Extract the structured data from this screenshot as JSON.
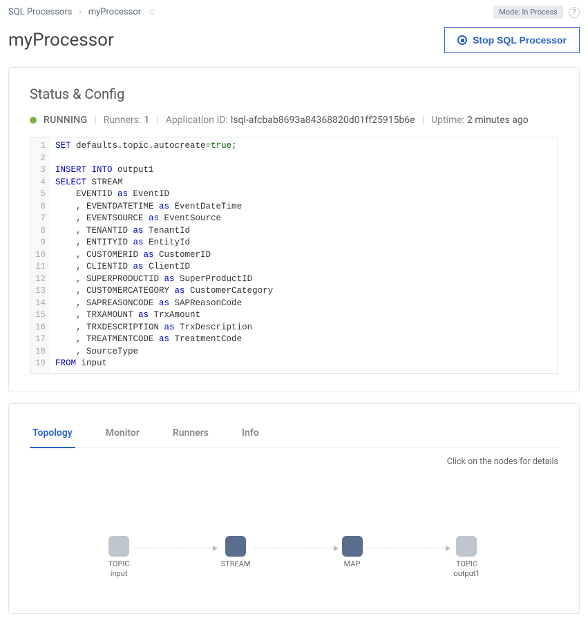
{
  "breadcrumb": {
    "root": "SQL Processors",
    "current": "myProcessor"
  },
  "mode": "Mode: In Process",
  "title": "myProcessor",
  "stop_button": "Stop SQL Processor",
  "status_panel": {
    "heading": "Status & Config",
    "status": "RUNNING",
    "runners_label": "Runners:",
    "runners": "1",
    "appid_label": "Application ID:",
    "appid": "lsql-afcbab8693a84368820d01ff25915b6e",
    "uptime_label": "Uptime:",
    "uptime": "2 minutes ago"
  },
  "code": {
    "lines": [
      [
        [
          "kw",
          "SET"
        ],
        [
          "",
          " defaults.topic.autocreate="
        ],
        [
          "lit",
          "true"
        ],
        [
          "",
          ";"
        ]
      ],
      [
        [
          "",
          ""
        ]
      ],
      [
        [
          "kw",
          "INSERT INTO"
        ],
        [
          "",
          " output1"
        ]
      ],
      [
        [
          "kw",
          "SELECT"
        ],
        [
          "",
          " STREAM"
        ]
      ],
      [
        [
          "",
          "    EVENTID "
        ],
        [
          "kw",
          "as"
        ],
        [
          "",
          " EventID"
        ]
      ],
      [
        [
          "",
          "    , EVENTDATETIME "
        ],
        [
          "kw",
          "as"
        ],
        [
          "",
          " EventDateTime"
        ]
      ],
      [
        [
          "",
          "    , EVENTSOURCE "
        ],
        [
          "kw",
          "as"
        ],
        [
          "",
          " EventSource"
        ]
      ],
      [
        [
          "",
          "    , TENANTID "
        ],
        [
          "kw",
          "as"
        ],
        [
          "",
          " TenantId"
        ]
      ],
      [
        [
          "",
          "    , ENTITYID "
        ],
        [
          "kw",
          "as"
        ],
        [
          "",
          " EntityId"
        ]
      ],
      [
        [
          "",
          "    , CUSTOMERID "
        ],
        [
          "kw",
          "as"
        ],
        [
          "",
          " CustomerID"
        ]
      ],
      [
        [
          "",
          "    , CLIENTID "
        ],
        [
          "kw",
          "as"
        ],
        [
          "",
          " ClientID"
        ]
      ],
      [
        [
          "",
          "    , SUPERPRODUCTID "
        ],
        [
          "kw",
          "as"
        ],
        [
          "",
          " SuperProductID"
        ]
      ],
      [
        [
          "",
          "    , CUSTOMERCATEGORY "
        ],
        [
          "kw",
          "as"
        ],
        [
          "",
          " CustomerCategory"
        ]
      ],
      [
        [
          "",
          "    , SAPREASONCODE "
        ],
        [
          "kw",
          "as"
        ],
        [
          "",
          " SAPReasonCode"
        ]
      ],
      [
        [
          "",
          "    , TRXAMOUNT "
        ],
        [
          "kw",
          "as"
        ],
        [
          "",
          " TrxAmount"
        ]
      ],
      [
        [
          "",
          "    , TRXDESCRIPTION "
        ],
        [
          "kw",
          "as"
        ],
        [
          "",
          " TrxDescription"
        ]
      ],
      [
        [
          "",
          "    , TREATMENTCODE "
        ],
        [
          "kw",
          "as"
        ],
        [
          "",
          " TreatmentCode"
        ]
      ],
      [
        [
          "",
          "    , SourceType"
        ]
      ],
      [
        [
          "kw",
          "FROM"
        ],
        [
          "",
          " input"
        ]
      ]
    ]
  },
  "tabs": [
    "Topology",
    "Monitor",
    "Runners",
    "Info"
  ],
  "active_tab": 0,
  "hint": "Click on the nodes for details",
  "topology": {
    "nodes": [
      {
        "title": "TOPIC",
        "sub": "input",
        "color": "gray"
      },
      {
        "title": "STREAM",
        "sub": "",
        "color": "blue"
      },
      {
        "title": "MAP",
        "sub": "",
        "color": "blue"
      },
      {
        "title": "TOPIC",
        "sub": "output1",
        "color": "gray"
      }
    ]
  }
}
